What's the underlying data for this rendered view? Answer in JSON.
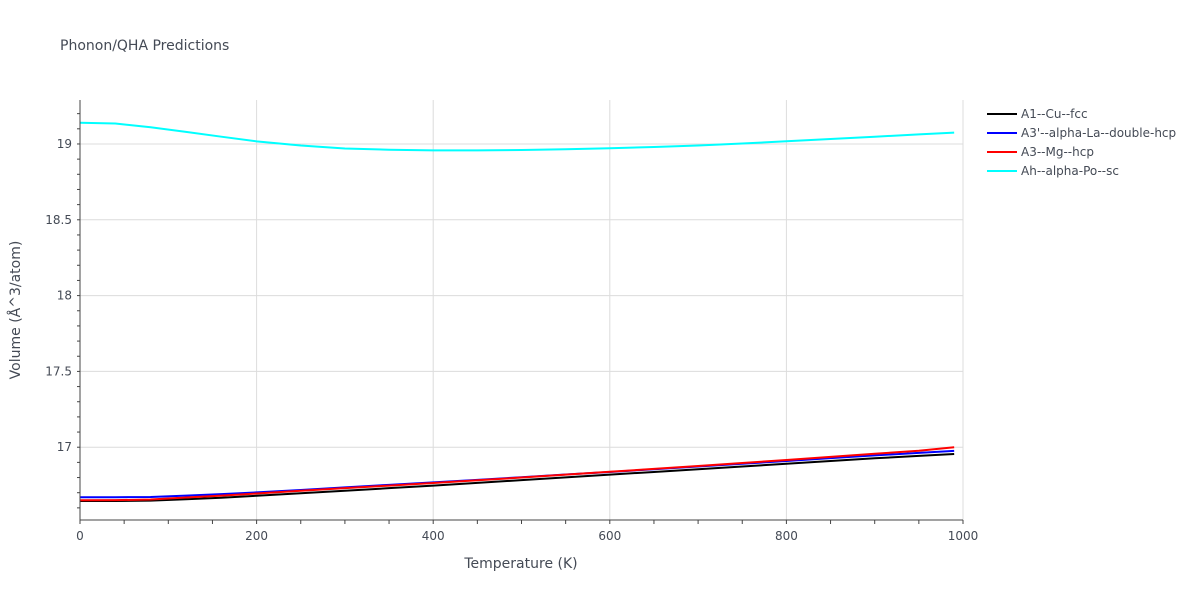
{
  "chart_data": {
    "type": "line",
    "title": "Phonon/QHA Predictions",
    "xlabel": "Temperature (K)",
    "ylabel": "Volume (Å^3/atom)",
    "xlim": [
      0,
      1000
    ],
    "ylim": [
      16.52,
      19.29
    ],
    "x_ticks": [
      0,
      200,
      400,
      600,
      800,
      1000
    ],
    "y_ticks": [
      17,
      17.5,
      18,
      18.5,
      19
    ],
    "x_tick_labels": [
      "0",
      "200",
      "400",
      "600",
      "800",
      "1000"
    ],
    "y_tick_labels": [
      "17",
      "17.5",
      "18",
      "18.5",
      "19"
    ],
    "grid": true,
    "legend_position": "top-right outside",
    "series": [
      {
        "name": "A1--Cu--fcc",
        "color": "#000000",
        "x": [
          0,
          40,
          80,
          120,
          160,
          200,
          250,
          300,
          350,
          400,
          450,
          500,
          550,
          600,
          650,
          700,
          750,
          800,
          850,
          900,
          950,
          990
        ],
        "y": [
          16.645,
          16.645,
          16.648,
          16.657,
          16.667,
          16.68,
          16.696,
          16.713,
          16.73,
          16.747,
          16.765,
          16.783,
          16.801,
          16.819,
          16.837,
          16.855,
          16.873,
          16.891,
          16.909,
          16.927,
          16.943,
          16.955
        ]
      },
      {
        "name": "A3'--alpha-La--double-hcp",
        "color": "#0000ff",
        "x": [
          0,
          40,
          80,
          120,
          160,
          200,
          250,
          300,
          350,
          400,
          450,
          500,
          550,
          600,
          650,
          700,
          750,
          800,
          850,
          900,
          950,
          990
        ],
        "y": [
          16.67,
          16.67,
          16.672,
          16.681,
          16.691,
          16.702,
          16.718,
          16.735,
          16.752,
          16.768,
          16.785,
          16.802,
          16.82,
          16.837,
          16.855,
          16.873,
          16.891,
          16.909,
          16.928,
          16.946,
          16.963,
          16.976
        ]
      },
      {
        "name": "A3--Mg--hcp",
        "color": "#ff0000",
        "x": [
          0,
          40,
          80,
          120,
          160,
          200,
          250,
          300,
          350,
          400,
          450,
          500,
          550,
          600,
          650,
          700,
          750,
          800,
          850,
          900,
          950,
          990
        ],
        "y": [
          16.65,
          16.651,
          16.655,
          16.668,
          16.681,
          16.695,
          16.713,
          16.73,
          16.747,
          16.764,
          16.782,
          16.8,
          16.819,
          16.838,
          16.857,
          16.876,
          16.896,
          16.916,
          16.936,
          16.957,
          16.977,
          17.0
        ]
      },
      {
        "name": "Ah--alpha-Po--sc",
        "color": "#00ffff",
        "x": [
          0,
          40,
          80,
          120,
          160,
          200,
          250,
          300,
          350,
          400,
          450,
          500,
          550,
          600,
          650,
          700,
          750,
          800,
          850,
          900,
          950,
          990
        ],
        "y": [
          19.14,
          19.135,
          19.11,
          19.08,
          19.048,
          19.017,
          18.99,
          18.97,
          18.962,
          18.958,
          18.958,
          18.96,
          18.965,
          18.972,
          18.98,
          18.99,
          19.003,
          19.018,
          19.033,
          19.048,
          19.063,
          19.075
        ]
      }
    ]
  }
}
